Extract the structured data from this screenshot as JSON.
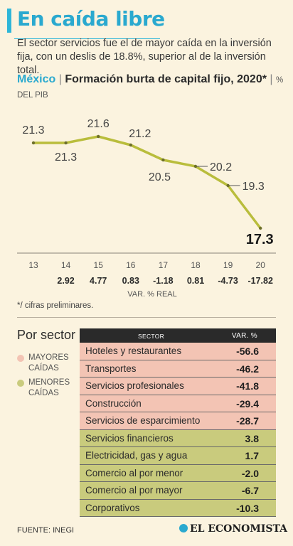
{
  "title": "En caída libre",
  "subtitle": "El sector servicios fue el de mayor caída en la inversión fija, con un deslis de 18.8%, superior al de la inversión total.",
  "chart_data": {
    "type": "line",
    "title_country": "México",
    "title_separator": "|",
    "title_rest": "Formación burta de capital fijo, 2020*",
    "title_unit_sep": "|",
    "title_unit": "% DEL PIB",
    "x": [
      "13",
      "14",
      "15",
      "16",
      "17",
      "18",
      "19",
      "20"
    ],
    "values": [
      21.3,
      21.3,
      21.6,
      21.2,
      20.5,
      20.2,
      19.3,
      17.3
    ],
    "value_labels": [
      "21.3",
      "21.3",
      "21.6",
      "21.2",
      "20.5",
      "20.2",
      "19.3",
      "17.3"
    ],
    "ylim": [
      17.0,
      22.0
    ],
    "var_values": [
      "",
      "2.92",
      "4.77",
      "0.83",
      "-1.18",
      "0.81",
      "-4.73",
      "-17.82"
    ],
    "var_label": "VAR. % REAL",
    "line_color": "#b9bd3c"
  },
  "footnote": "*/ cifras preliminares.",
  "sectors": {
    "heading": "Por sector",
    "legend": [
      {
        "label_line1": "MAYORES",
        "label_line2": "CAÍDAS",
        "color": "#f3c4b4"
      },
      {
        "label_line1": "MENORES",
        "label_line2": "CAÍDAS",
        "color": "#c9cb7d"
      }
    ],
    "table": {
      "col_sector": "SECTOR",
      "col_var": "VAR. %",
      "rows": [
        {
          "name": "Hoteles y restaurantes",
          "value": "-56.6",
          "group": "down"
        },
        {
          "name": "Transportes",
          "value": "-46.2",
          "group": "down"
        },
        {
          "name": "Servicios profesionales",
          "value": "-41.8",
          "group": "down"
        },
        {
          "name": "Construcción",
          "value": "-29.4",
          "group": "down"
        },
        {
          "name": "Servicios de esparcimiento",
          "value": "-28.7",
          "group": "down"
        },
        {
          "name": "Servicios financieros",
          "value": "3.8",
          "group": "up"
        },
        {
          "name": "Electricidad, gas y agua",
          "value": "1.7",
          "group": "up"
        },
        {
          "name": "Comercio al por menor",
          "value": "-2.0",
          "group": "up"
        },
        {
          "name": "Comercio al por mayor",
          "value": "-6.7",
          "group": "up"
        },
        {
          "name": "Corporativos",
          "value": "-10.3",
          "group": "up"
        }
      ]
    }
  },
  "source": "FUENTE: INEGI",
  "brand": "EL ECONOMISTA"
}
